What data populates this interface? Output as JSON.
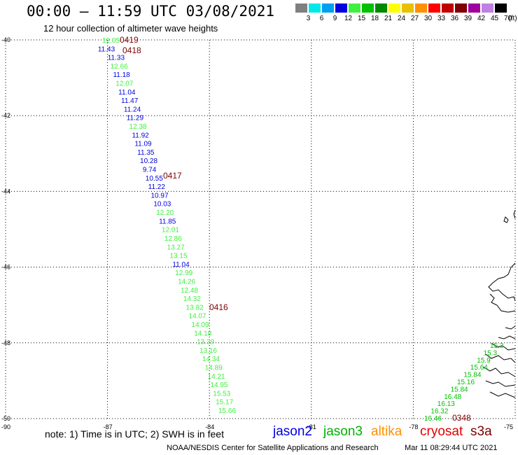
{
  "header": {
    "title": "00:00 – 11:59 UTC 03/08/2021",
    "subtitle": "12 hour collection of altimeter wave heights"
  },
  "colorbar": {
    "unit": "(ft)",
    "bins": [
      {
        "label": "3",
        "color": "#808080"
      },
      {
        "label": "6",
        "color": "#00e8e8"
      },
      {
        "label": "9",
        "color": "#00a0f0"
      },
      {
        "label": "12",
        "color": "#0000e0"
      },
      {
        "label": "15",
        "color": "#40f040"
      },
      {
        "label": "18",
        "color": "#00c000"
      },
      {
        "label": "21",
        "color": "#008800"
      },
      {
        "label": "24",
        "color": "#ffff00"
      },
      {
        "label": "27",
        "color": "#e8c000"
      },
      {
        "label": "30",
        "color": "#ff9000"
      },
      {
        "label": "33",
        "color": "#ff0000"
      },
      {
        "label": "36",
        "color": "#c00000"
      },
      {
        "label": "39",
        "color": "#800000"
      },
      {
        "label": "42",
        "color": "#a000a0"
      },
      {
        "label": "45",
        "color": "#c080e0"
      },
      {
        "label": "70",
        "color": "#000000"
      }
    ]
  },
  "map": {
    "lat_labels": [
      "-40",
      "-42",
      "-44",
      "-46",
      "-48",
      "-50"
    ],
    "lon_labels": [
      "-90",
      "-87",
      "-84",
      "-81",
      "-78",
      "-75"
    ],
    "time_labels": [
      {
        "text": "0419"
      },
      {
        "text": "0418"
      },
      {
        "text": "0417"
      },
      {
        "text": "0416"
      },
      {
        "text": "0348"
      }
    ],
    "track_main": [
      {
        "v": "12.05",
        "c": "#40f040"
      },
      {
        "v": "11.43",
        "c": "#0000e0"
      },
      {
        "v": "11.33",
        "c": "#0000e0"
      },
      {
        "v": "12.66",
        "c": "#40f040"
      },
      {
        "v": "11.18",
        "c": "#0000e0"
      },
      {
        "v": "12.07",
        "c": "#40f040"
      },
      {
        "v": "11.04",
        "c": "#0000e0"
      },
      {
        "v": "11.47",
        "c": "#0000e0"
      },
      {
        "v": "11.24",
        "c": "#0000e0"
      },
      {
        "v": "11.29",
        "c": "#0000e0"
      },
      {
        "v": "12.38",
        "c": "#40f040"
      },
      {
        "v": "11.92",
        "c": "#0000e0"
      },
      {
        "v": "11.09",
        "c": "#0000e0"
      },
      {
        "v": "11.35",
        "c": "#0000e0"
      },
      {
        "v": "10.28",
        "c": "#0000e0"
      },
      {
        "v": "9.74",
        "c": "#0000e0"
      },
      {
        "v": "10.55",
        "c": "#0000e0"
      },
      {
        "v": "11.22",
        "c": "#0000e0"
      },
      {
        "v": "10.97",
        "c": "#0000e0"
      },
      {
        "v": "10.03",
        "c": "#0000e0"
      },
      {
        "v": "12.20",
        "c": "#40f040"
      },
      {
        "v": "11.85",
        "c": "#0000e0"
      },
      {
        "v": "12.01",
        "c": "#40f040"
      },
      {
        "v": "12.86",
        "c": "#40f040"
      },
      {
        "v": "13.27",
        "c": "#40f040"
      },
      {
        "v": "13.15",
        "c": "#40f040"
      },
      {
        "v": "11.04",
        "c": "#0000e0"
      },
      {
        "v": "12.99",
        "c": "#40f040"
      },
      {
        "v": "14.26",
        "c": "#40f040"
      },
      {
        "v": "12.48",
        "c": "#40f040"
      },
      {
        "v": "14.32",
        "c": "#40f040"
      },
      {
        "v": "13.82",
        "c": "#40f040"
      },
      {
        "v": "14.07",
        "c": "#40f040"
      },
      {
        "v": "14.09",
        "c": "#40f040"
      },
      {
        "v": "14.18",
        "c": "#40f040"
      },
      {
        "v": "13.39",
        "c": "#40f040"
      },
      {
        "v": "13.16",
        "c": "#40f040"
      },
      {
        "v": "14.34",
        "c": "#40f040"
      },
      {
        "v": "14.89",
        "c": "#40f040"
      },
      {
        "v": "14.21",
        "c": "#40f040"
      },
      {
        "v": "14.95",
        "c": "#40f040"
      },
      {
        "v": "15.53",
        "c": "#40f040"
      },
      {
        "v": "15.17",
        "c": "#40f040"
      },
      {
        "v": "15.66",
        "c": "#40f040"
      }
    ],
    "track_east": [
      {
        "v": "16.46",
        "c": "#00c000"
      },
      {
        "v": "16.32",
        "c": "#00c000"
      },
      {
        "v": "16.13",
        "c": "#00c000"
      },
      {
        "v": "16.48",
        "c": "#00c000"
      },
      {
        "v": "15.84",
        "c": "#00c000"
      },
      {
        "v": "15.16",
        "c": "#00c000"
      },
      {
        "v": "15.84",
        "c": "#00c000"
      },
      {
        "v": "15.64",
        "c": "#00c000"
      },
      {
        "v": "15.9",
        "c": "#00c000"
      },
      {
        "v": "15.3",
        "c": "#00c000"
      },
      {
        "v": "15.3",
        "c": "#00c000"
      }
    ]
  },
  "footer": {
    "note": "note: 1) Time is in UTC; 2) SWH is in feet",
    "satellites": [
      {
        "name": "jason2",
        "color": "#0000e0"
      },
      {
        "name": "jason3",
        "color": "#00b000"
      },
      {
        "name": "altika",
        "color": "#ff9000"
      },
      {
        "name": "cryosat",
        "color": "#e00000"
      },
      {
        "name": "s3a",
        "color": "#800000"
      }
    ],
    "credit": "NOAA/NESDIS Center for Satellite Applications and Research",
    "timestamp": "Mar 11 08:29:44 UTC 2021"
  }
}
